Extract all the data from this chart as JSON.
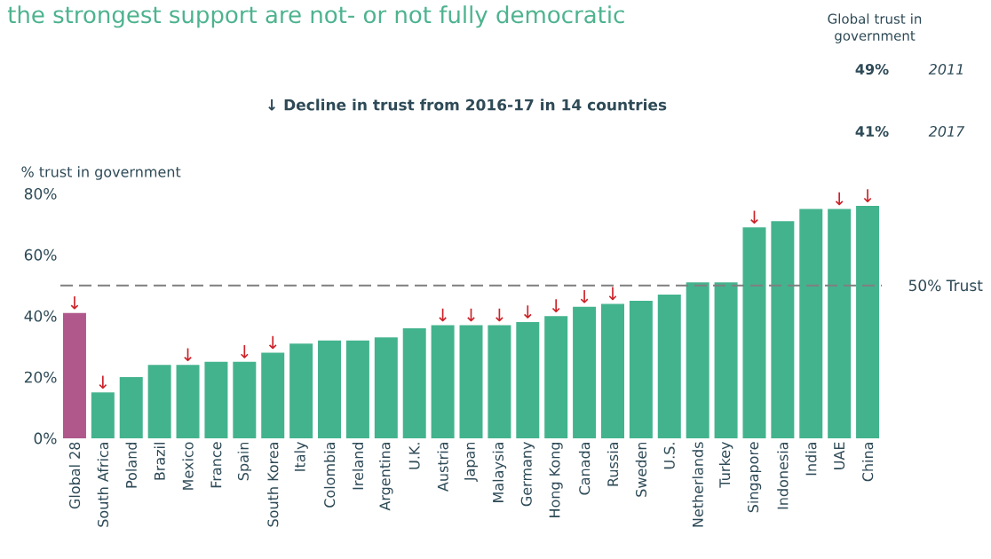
{
  "chart_data": {
    "type": "bar",
    "title": "the strongest support are not- or not fully democratic",
    "subtitle": "↓ Decline in trust from 2016-17 in 14 countries",
    "ylabel": "% trust in government",
    "categories": [
      "Global 28",
      "South Africa",
      "Poland",
      "Brazil",
      "Mexico",
      "France",
      "Spain",
      "South Korea",
      "Italy",
      "Colombia",
      "Ireland",
      "Argentina",
      "U.K.",
      "Austria",
      "Japan",
      "Malaysia",
      "Germany",
      "Hong Kong",
      "Canada",
      "Russia",
      "Sweden",
      "U.S.",
      "Netherlands",
      "Turkey",
      "Singapore",
      "Indonesia",
      "India",
      "UAE",
      "China"
    ],
    "values": [
      41,
      15,
      20,
      24,
      24,
      25,
      25,
      28,
      31,
      32,
      32,
      33,
      36,
      37,
      37,
      37,
      38,
      40,
      43,
      44,
      45,
      47,
      51,
      51,
      69,
      71,
      75,
      75,
      76
    ],
    "colors": [
      "#b0588c",
      "#43b38e",
      "#43b38e",
      "#43b38e",
      "#43b38e",
      "#43b38e",
      "#43b38e",
      "#43b38e",
      "#43b38e",
      "#43b38e",
      "#43b38e",
      "#43b38e",
      "#43b38e",
      "#43b38e",
      "#43b38e",
      "#43b38e",
      "#43b38e",
      "#43b38e",
      "#43b38e",
      "#43b38e",
      "#43b38e",
      "#43b38e",
      "#43b38e",
      "#43b38e",
      "#43b38e",
      "#43b38e",
      "#43b38e",
      "#43b38e",
      "#43b38e"
    ],
    "ylim": [
      0,
      80
    ],
    "yticks": [
      {
        "value": 0,
        "label": "0%"
      },
      {
        "value": 20,
        "label": "20%"
      },
      {
        "value": 40,
        "label": "40%"
      },
      {
        "value": 60,
        "label": "60%"
      },
      {
        "value": 80,
        "label": "80%"
      }
    ],
    "ref_lines": [
      {
        "axis": "y",
        "value": 50,
        "label": "50% Trust",
        "color": "#7f7f7f",
        "line_style": "dashed"
      }
    ],
    "annotations": [
      "Global trust in government",
      "49%",
      "2011",
      "41%",
      "2017",
      {
        "text": "↓",
        "x": "Global 28",
        "y": 41
      },
      {
        "text": "↓",
        "x": "South Africa",
        "y": 15
      },
      {
        "text": "↓",
        "x": "Mexico",
        "y": 24
      },
      {
        "text": "↓",
        "x": "Spain",
        "y": 25
      },
      {
        "text": "↓",
        "x": "South Korea",
        "y": 28
      },
      {
        "text": "↓",
        "x": "Austria",
        "y": 37
      },
      {
        "text": "↓",
        "x": "Japan",
        "y": 37
      },
      {
        "text": "↓",
        "x": "Malaysia",
        "y": 37
      },
      {
        "text": "↓",
        "x": "Germany",
        "y": 38
      },
      {
        "text": "↓",
        "x": "Hong Kong",
        "y": 40
      },
      {
        "text": "↓",
        "x": "Canada",
        "y": 43
      },
      {
        "text": "↓",
        "x": "Russia",
        "y": 44
      },
      {
        "text": "↓",
        "x": "Singapore",
        "y": 69
      },
      {
        "text": "↓",
        "x": "UAE",
        "y": 75
      },
      {
        "text": "↓",
        "x": "China",
        "y": 76
      }
    ]
  }
}
